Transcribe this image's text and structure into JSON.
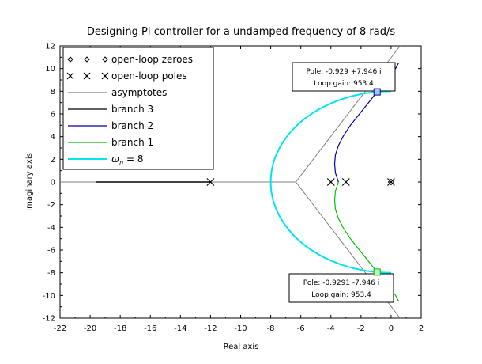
{
  "chart_data": {
    "type": "line",
    "title": "Designing PI controller for a undamped frequency of 8 rad/s",
    "xlabel": "Real axis",
    "ylabel": "Imaginary axis",
    "xlim": [
      -22,
      2
    ],
    "ylim": [
      -12,
      12
    ],
    "xticks": [
      -22,
      -20,
      -18,
      -16,
      -14,
      -12,
      -10,
      -8,
      -6,
      -4,
      -2,
      0,
      2
    ],
    "yticks": [
      -12,
      -10,
      -8,
      -6,
      -4,
      -2,
      0,
      2,
      4,
      6,
      8,
      10,
      12
    ],
    "xtick_labels": [
      "-22",
      "-20",
      "-18",
      "-16",
      "-14",
      "-12",
      "-10",
      "-8",
      "-6",
      "-4",
      "-2",
      "0",
      "2"
    ],
    "ytick_labels": [
      "-12",
      "-10",
      "-8",
      "-6",
      "-4",
      "-2",
      "0",
      "2",
      "4",
      "6",
      "8",
      "10",
      "12"
    ],
    "grid": false,
    "legend_position": "top-left",
    "legend": [
      {
        "label": "open-loop zeroes",
        "marker": "diamond"
      },
      {
        "label": "open-loop poles",
        "marker": "x"
      },
      {
        "label": "asymptotes",
        "color": "#808080"
      },
      {
        "label": "branch 3",
        "color": "#000000"
      },
      {
        "label": "branch 2",
        "color": "#0000a0"
      },
      {
        "label": "branch 1",
        "color": "#00c000"
      },
      {
        "label": "ω_n = 8",
        "color": "#00e5ee"
      }
    ],
    "open_loop_zeroes": [
      {
        "x": 0,
        "y": 0
      }
    ],
    "open_loop_poles": [
      {
        "x": -12,
        "y": 0
      },
      {
        "x": -4,
        "y": 0
      },
      {
        "x": -3,
        "y": 0
      },
      {
        "x": 0,
        "y": 0
      }
    ],
    "asymptote_centroid": [
      -6.33,
      0
    ],
    "asymptotes": [
      {
        "from": [
          -22,
          0
        ],
        "to": [
          -6.33,
          0
        ]
      },
      {
        "from": [
          -6.33,
          0
        ],
        "to": [
          0.6,
          12
        ]
      },
      {
        "from": [
          -6.33,
          0
        ],
        "to": [
          0.6,
          -12
        ]
      }
    ],
    "series": [
      {
        "name": "branch 3",
        "color": "#000000",
        "x": [
          -19.6,
          -12.0
        ],
        "y": [
          0,
          0
        ]
      },
      {
        "name": "branch 2",
        "color": "#0000a0",
        "x": [
          -3.5,
          -3.7,
          -3.75,
          -3.7,
          -3.5,
          -3.2,
          -2.7,
          -2.1,
          -1.5,
          -0.93,
          -0.4,
          0.0,
          0.3,
          0.5
        ],
        "y": [
          0,
          0.8,
          1.6,
          2.4,
          3.2,
          4.0,
          5.0,
          6.0,
          7.0,
          7.946,
          8.8,
          9.5,
          10.0,
          10.5
        ]
      },
      {
        "name": "branch 1",
        "color": "#00c000",
        "x": [
          -3.5,
          -3.7,
          -3.75,
          -3.7,
          -3.5,
          -3.2,
          -2.7,
          -2.1,
          -1.5,
          -0.93,
          -0.4,
          0.0,
          0.3,
          0.5
        ],
        "y": [
          0,
          -0.8,
          -1.6,
          -2.4,
          -3.2,
          -4.0,
          -5.0,
          -6.0,
          -7.0,
          -7.946,
          -8.8,
          -9.5,
          -10.0,
          -10.5
        ]
      },
      {
        "name": "ω_n = 8",
        "color": "#00e5ee",
        "center": [
          0,
          0
        ],
        "radius": 8,
        "theta_deg": [
          90,
          270
        ],
        "right_extension_to_x": 0
      }
    ],
    "datatips": [
      {
        "pole": "Pole: -0.929 +7.946 i",
        "gain": "Loop gain: 953.4",
        "x": -0.929,
        "y": 7.946,
        "color": "#0000a0"
      },
      {
        "pole": "Pole: -0.9291 -7.946 i",
        "gain": "Loop gain: 953.4",
        "x": -0.9291,
        "y": -7.946,
        "color": "#00c000"
      }
    ]
  },
  "legend_math": {
    "omega": "ω",
    "sub": "n",
    "rest": " = 8"
  }
}
